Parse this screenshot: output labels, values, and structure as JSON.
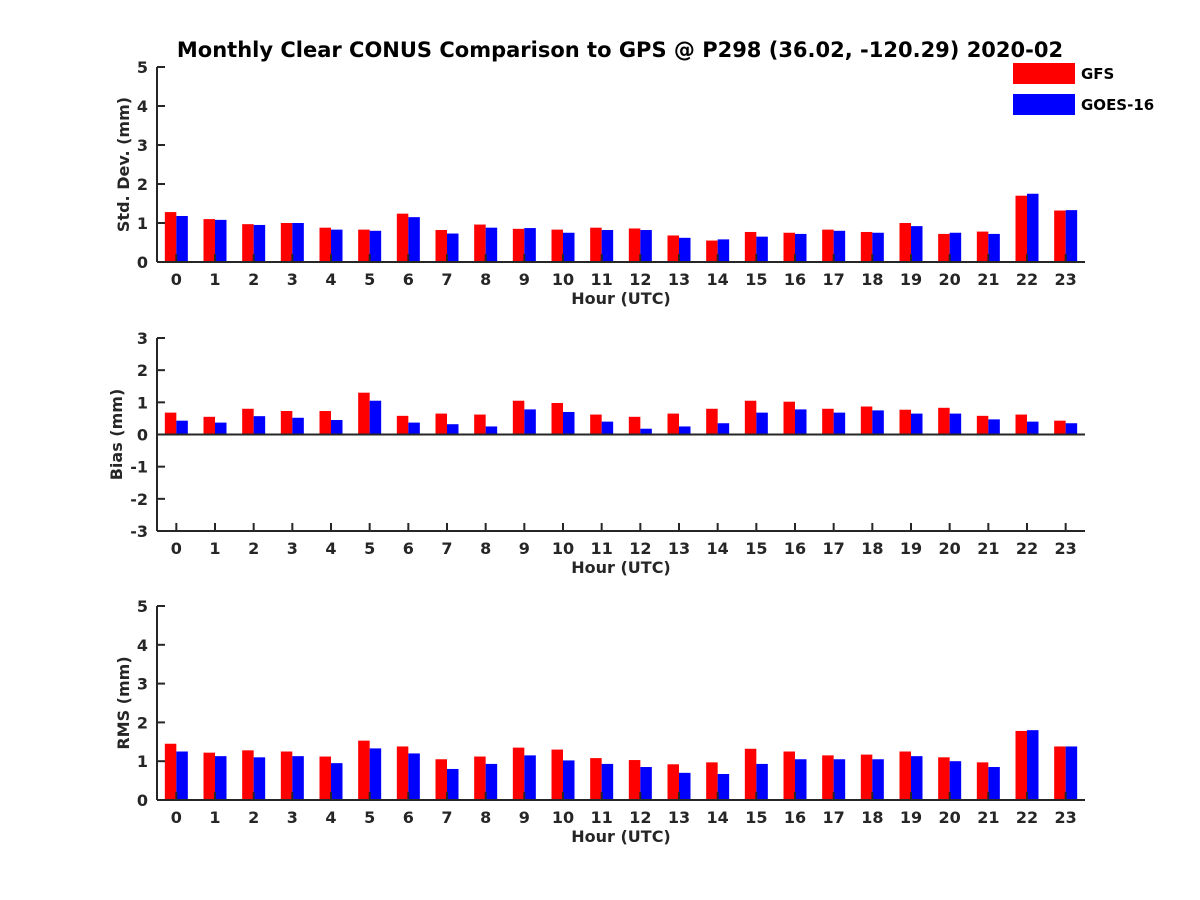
{
  "title": "Monthly Clear CONUS Comparison to GPS @ P298 (36.02, -120.29) 2020-02",
  "legend": {
    "location": "top-right",
    "entries": [
      {
        "name": "GFS",
        "color": "#ff0000"
      },
      {
        "name": "GOES-16",
        "color": "#0000ff"
      }
    ]
  },
  "chart_data": [
    {
      "type": "bar",
      "title": "Monthly Clear CONUS Comparison to GPS @ P298 (36.02, -120.29) 2020-02",
      "xlabel": "Hour (UTC)",
      "ylabel": "Std. Dev. (mm)",
      "ylim": [
        0,
        5
      ],
      "yticks": [
        0,
        1,
        2,
        3,
        4,
        5
      ],
      "categories": [
        "0",
        "1",
        "2",
        "3",
        "4",
        "5",
        "6",
        "7",
        "8",
        "9",
        "10",
        "11",
        "12",
        "13",
        "14",
        "15",
        "16",
        "17",
        "18",
        "19",
        "20",
        "21",
        "22",
        "23"
      ],
      "series": [
        {
          "name": "GFS",
          "color": "#ff0000",
          "values": [
            1.28,
            1.1,
            0.97,
            1.0,
            0.88,
            0.83,
            1.24,
            0.82,
            0.96,
            0.85,
            0.83,
            0.88,
            0.86,
            0.68,
            0.55,
            0.77,
            0.75,
            0.83,
            0.77,
            1.0,
            0.72,
            0.78,
            1.7,
            1.32
          ]
        },
        {
          "name": "GOES-16",
          "color": "#0000ff",
          "values": [
            1.18,
            1.08,
            0.95,
            1.0,
            0.83,
            0.8,
            1.15,
            0.73,
            0.88,
            0.87,
            0.75,
            0.82,
            0.82,
            0.62,
            0.58,
            0.65,
            0.72,
            0.8,
            0.75,
            0.92,
            0.75,
            0.72,
            1.75,
            1.33
          ]
        }
      ]
    },
    {
      "type": "bar",
      "xlabel": "Hour (UTC)",
      "ylabel": "Bias (mm)",
      "ylim": [
        -3,
        3
      ],
      "yticks": [
        -3,
        -2,
        -1,
        0,
        1,
        2,
        3
      ],
      "categories": [
        "0",
        "1",
        "2",
        "3",
        "4",
        "5",
        "6",
        "7",
        "8",
        "9",
        "10",
        "11",
        "12",
        "13",
        "14",
        "15",
        "16",
        "17",
        "18",
        "19",
        "20",
        "21",
        "22",
        "23"
      ],
      "series": [
        {
          "name": "GFS",
          "color": "#ff0000",
          "values": [
            0.68,
            0.55,
            0.8,
            0.73,
            0.73,
            1.3,
            0.58,
            0.65,
            0.62,
            1.05,
            0.98,
            0.62,
            0.55,
            0.65,
            0.8,
            1.05,
            1.02,
            0.8,
            0.87,
            0.77,
            0.83,
            0.58,
            0.62,
            0.43
          ]
        },
        {
          "name": "GOES-16",
          "color": "#0000ff",
          "values": [
            0.43,
            0.37,
            0.57,
            0.52,
            0.45,
            1.05,
            0.37,
            0.32,
            0.25,
            0.78,
            0.7,
            0.4,
            0.18,
            0.25,
            0.35,
            0.68,
            0.78,
            0.68,
            0.75,
            0.65,
            0.65,
            0.47,
            0.4,
            0.35
          ]
        }
      ]
    },
    {
      "type": "bar",
      "xlabel": "Hour (UTC)",
      "ylabel": "RMS (mm)",
      "ylim": [
        0,
        5
      ],
      "yticks": [
        0,
        1,
        2,
        3,
        4,
        5
      ],
      "categories": [
        "0",
        "1",
        "2",
        "3",
        "4",
        "5",
        "6",
        "7",
        "8",
        "9",
        "10",
        "11",
        "12",
        "13",
        "14",
        "15",
        "16",
        "17",
        "18",
        "19",
        "20",
        "21",
        "22",
        "23"
      ],
      "series": [
        {
          "name": "GFS",
          "color": "#ff0000",
          "values": [
            1.45,
            1.22,
            1.28,
            1.25,
            1.12,
            1.53,
            1.38,
            1.05,
            1.12,
            1.35,
            1.3,
            1.08,
            1.03,
            0.92,
            0.97,
            1.32,
            1.25,
            1.15,
            1.17,
            1.25,
            1.1,
            0.97,
            1.78,
            1.38
          ]
        },
        {
          "name": "GOES-16",
          "color": "#0000ff",
          "values": [
            1.25,
            1.13,
            1.1,
            1.13,
            0.95,
            1.33,
            1.2,
            0.8,
            0.93,
            1.15,
            1.02,
            0.93,
            0.85,
            0.7,
            0.67,
            0.93,
            1.05,
            1.05,
            1.05,
            1.13,
            1.0,
            0.85,
            1.8,
            1.38
          ]
        }
      ]
    }
  ]
}
